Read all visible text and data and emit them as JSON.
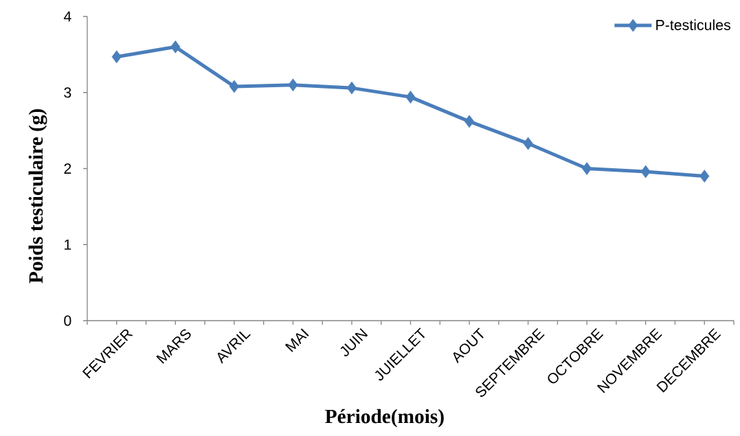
{
  "chart_data": {
    "type": "line",
    "xlabel": "Période(mois)",
    "ylabel": "Poids testiculaire (g)",
    "categories": [
      "FEVRIER",
      "MARS",
      "AVRIL",
      "MAI",
      "JUIN",
      "JUIELLET",
      "AOUT",
      "SEPTEMBRE",
      "OCTOBRE",
      "NOVEMBRE",
      "DECEMBRE"
    ],
    "series": [
      {
        "name": "P-testicules",
        "color": "#4a7ebb",
        "values": [
          3.47,
          3.6,
          3.08,
          3.1,
          3.06,
          2.94,
          2.62,
          2.33,
          2.0,
          1.96,
          1.9
        ]
      }
    ],
    "ylim": [
      0,
      4
    ],
    "yticks": [
      0,
      1,
      2,
      3,
      4
    ],
    "legend": "top right",
    "marker": "diamond",
    "line_style": "solid"
  }
}
